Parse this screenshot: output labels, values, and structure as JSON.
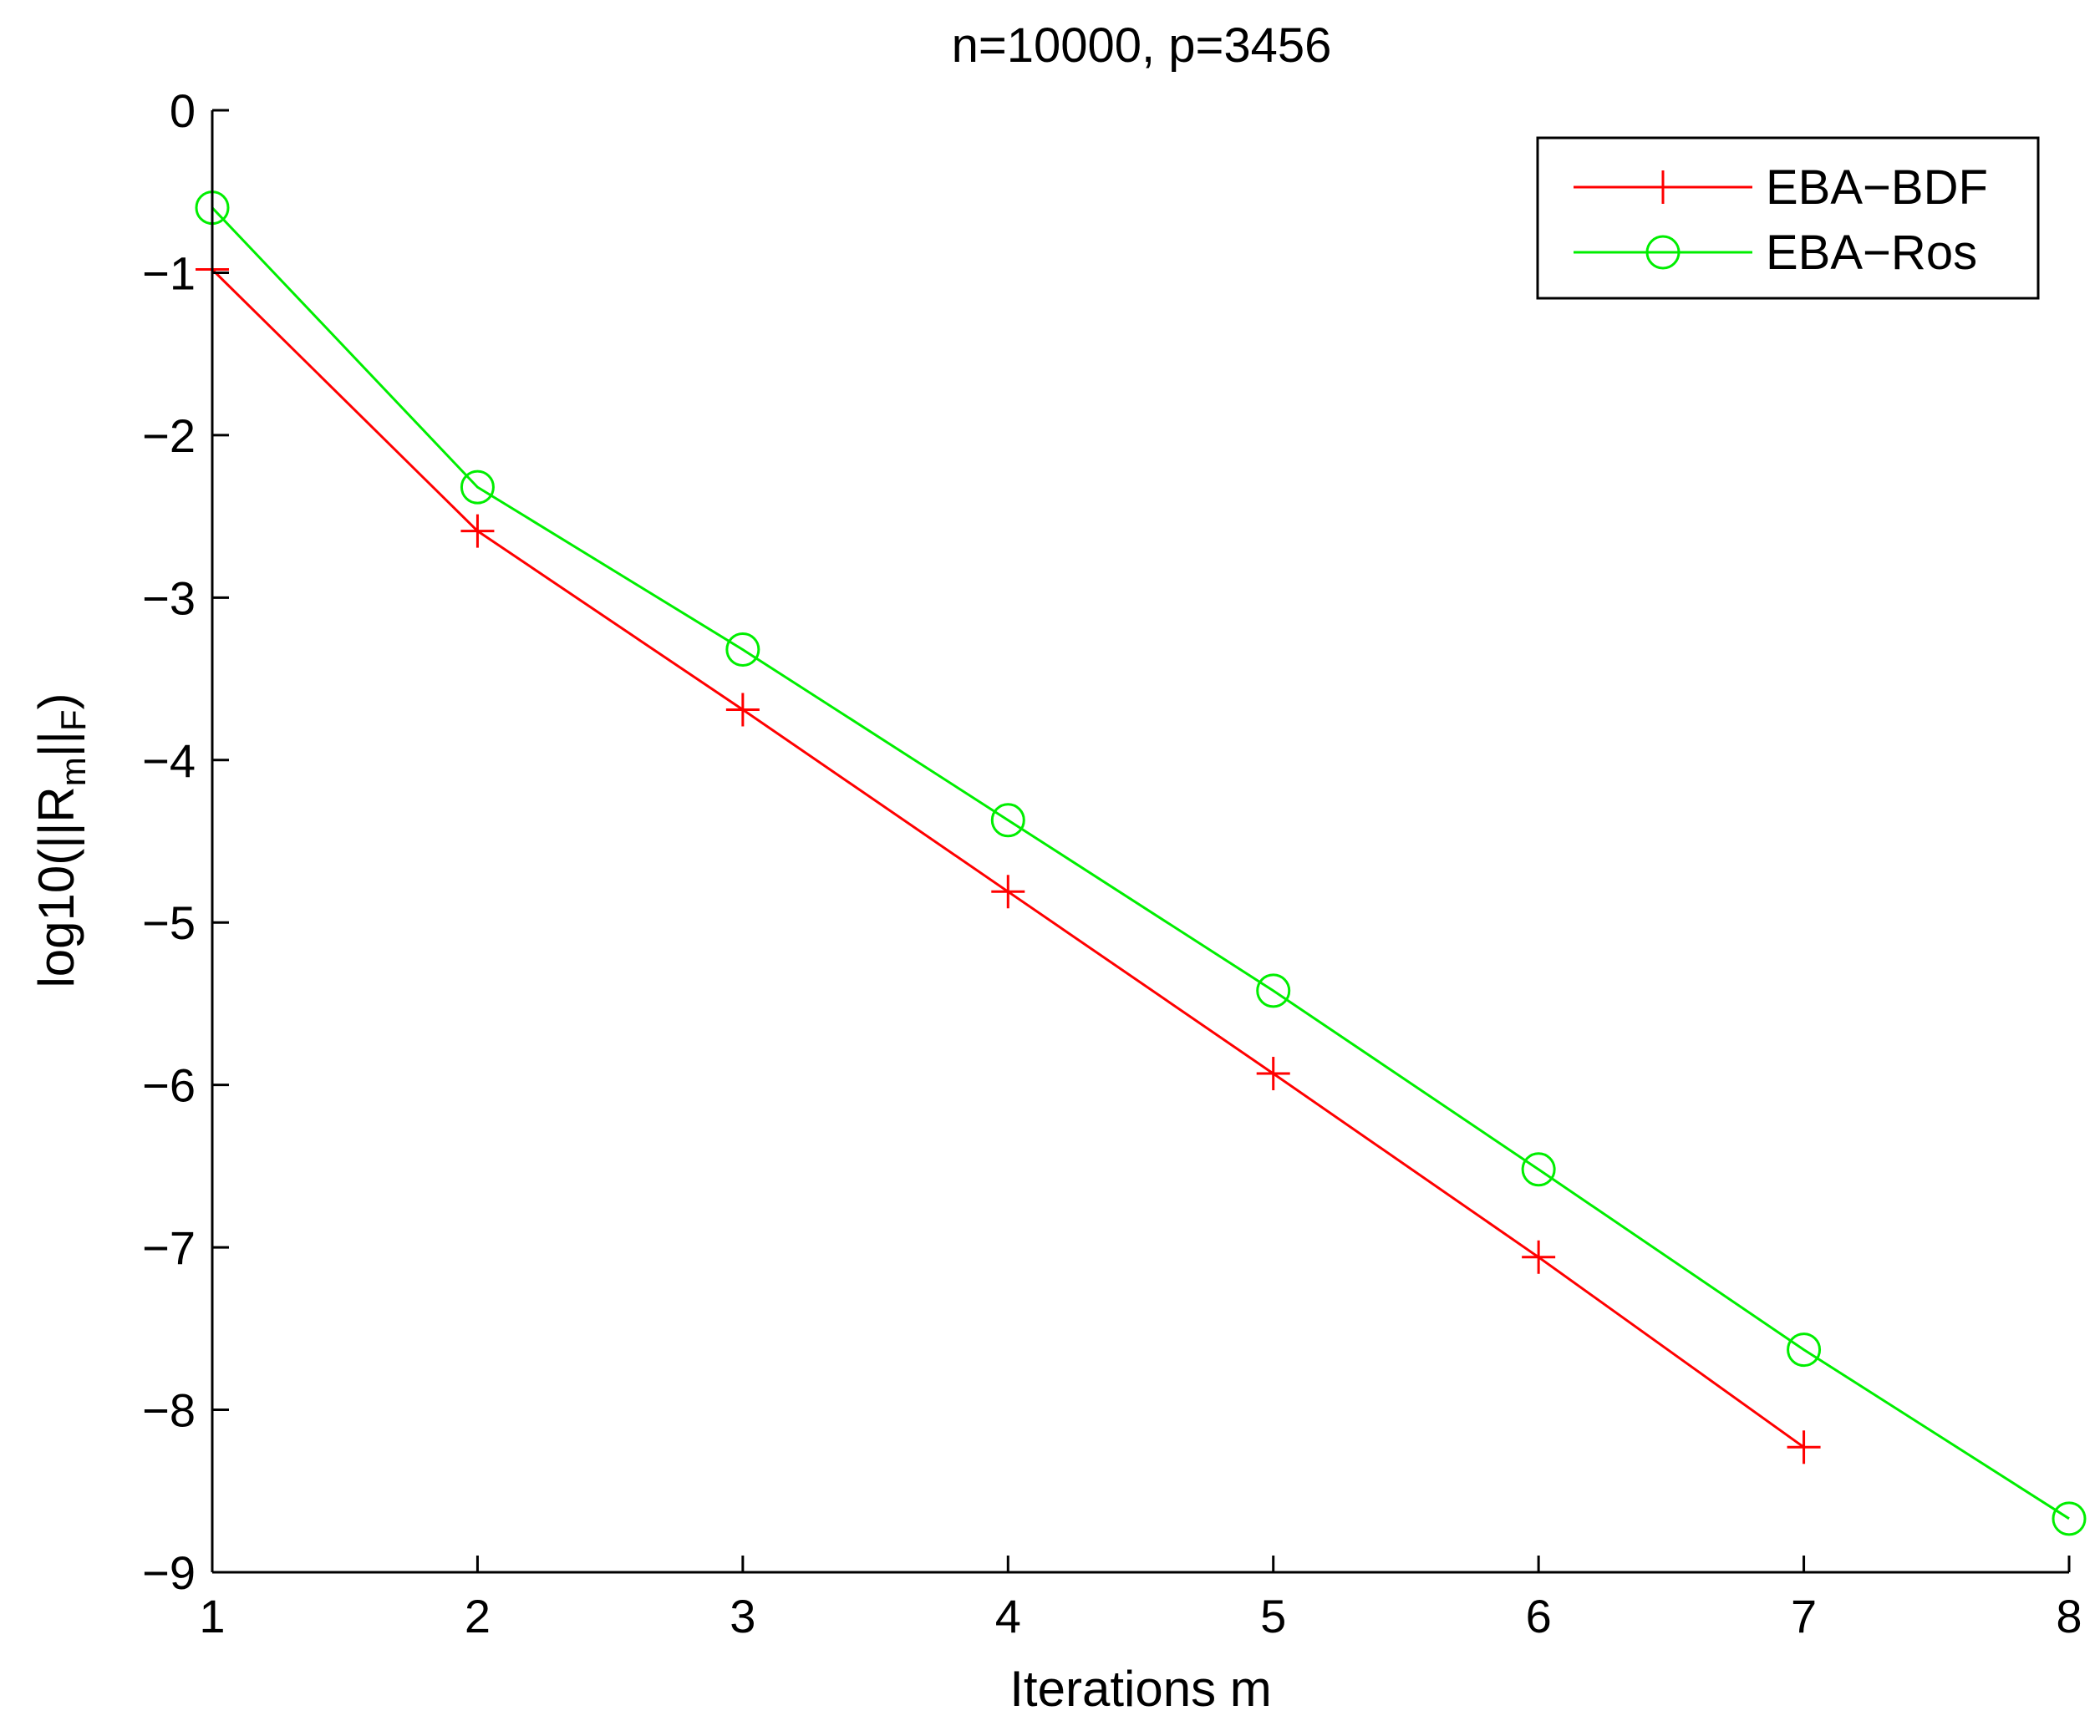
{
  "chart_data": {
    "type": "line",
    "title": "n=10000, p=3456",
    "xlabel": "Iterations m",
    "ylabel": {
      "prefix": "log10(||R",
      "sub1": "m",
      "mid": "||",
      "sub2": "F",
      "suffix": ")"
    },
    "xlim": [
      1,
      8
    ],
    "ylim": [
      -9,
      0
    ],
    "xticks": [
      1,
      2,
      3,
      4,
      5,
      6,
      7,
      8
    ],
    "yticks": [
      0,
      -1,
      -2,
      -3,
      -4,
      -5,
      -6,
      -7,
      -8,
      -9
    ],
    "xtick_labels": [
      "1",
      "2",
      "3",
      "4",
      "5",
      "6",
      "7",
      "8"
    ],
    "ytick_labels": [
      "0",
      "−1",
      "−2",
      "−3",
      "−4",
      "−5",
      "−6",
      "−7",
      "−8",
      "−9"
    ],
    "grid": false,
    "legend_position": "top-right",
    "series": [
      {
        "name": "EBA−BDF",
        "color": "#ff0000",
        "marker": "plus",
        "x": [
          1,
          2,
          3,
          4,
          5,
          6,
          7
        ],
        "y": [
          -0.98,
          -2.59,
          -3.69,
          -4.81,
          -5.93,
          -7.06,
          -8.23
        ]
      },
      {
        "name": "EBA−Ros",
        "color": "#00ee00",
        "marker": "circle",
        "x": [
          1,
          2,
          3,
          4,
          5,
          6,
          7,
          8
        ],
        "y": [
          -0.6,
          -2.32,
          -3.32,
          -4.37,
          -5.42,
          -6.52,
          -7.63,
          -8.67
        ]
      }
    ]
  }
}
